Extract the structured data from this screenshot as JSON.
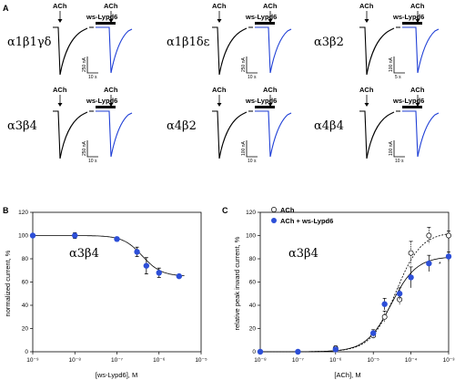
{
  "panels": {
    "a": "A",
    "b": "B",
    "c": "C"
  },
  "traces": {
    "ach_label": "ACh",
    "lypd6_label": "ws-Lypd6",
    "subunits": [
      "α1β1γδ",
      "α1β1δε",
      "α3β2",
      "α3β4",
      "α4β2",
      "α4β4"
    ],
    "scale_current": [
      "250 nA",
      "250 nA",
      "100 nA",
      "250 nA",
      "100 nA",
      "100 nA"
    ],
    "scale_time": [
      "10 s",
      "10 s",
      "5 s",
      "10 s",
      "10 s",
      "10 s"
    ]
  },
  "chart_data": [
    {
      "type": "scatter",
      "panel": "B",
      "annotation": "α3β4",
      "xlabel": "[ws-Lypd6], M",
      "ylabel": "normalized current, %",
      "xscale": "log",
      "xlim": [
        1e-09,
        1e-05
      ],
      "ylim": [
        0,
        120
      ],
      "x_ticks": [
        "10⁻⁹",
        "10⁻⁸",
        "10⁻⁷",
        "10⁻⁶",
        "10⁻⁵"
      ],
      "y_ticks": [
        "0",
        "20",
        "40",
        "60",
        "80",
        "100",
        "120"
      ],
      "series": [
        {
          "x": [
            1e-09,
            1e-08,
            1e-07,
            3e-07,
            5e-07,
            1e-06,
            3e-06
          ],
          "y": [
            100,
            100,
            97,
            86,
            74,
            68,
            65
          ],
          "yerr": [
            1.5,
            2.5,
            1.5,
            4,
            7,
            4,
            1.5
          ]
        }
      ],
      "fit": {
        "bottom": 65,
        "top": 100,
        "ic50": 4e-07,
        "hill": 1.9
      }
    },
    {
      "type": "scatter",
      "panel": "C",
      "annotation": "α3β4",
      "xlabel": "[ACh], M",
      "ylabel": "relative peak inward current, %",
      "xscale": "log",
      "xlim": [
        1e-08,
        0.001
      ],
      "ylim": [
        0,
        120
      ],
      "x_ticks": [
        "10⁻⁸",
        "10⁻⁷",
        "10⁻⁶",
        "10⁻⁵",
        "10⁻⁴",
        "10⁻³"
      ],
      "y_ticks": [
        "0",
        "20",
        "40",
        "60",
        "80",
        "100",
        "120"
      ],
      "legend_position": "top-right",
      "series": [
        {
          "name": "ACh",
          "style": "open",
          "x": [
            1e-08,
            1e-07,
            1e-06,
            1e-05,
            2e-05,
            5e-05,
            0.0001,
            0.0003,
            0.001
          ],
          "y": [
            0,
            0,
            3,
            14,
            30,
            45,
            85,
            100,
            100
          ],
          "yerr": [
            1,
            1,
            2,
            3,
            5,
            5,
            10,
            7,
            4
          ]
        },
        {
          "name": "ACh + ws-Lypd6",
          "style": "filled",
          "x": [
            1e-08,
            1e-07,
            1e-06,
            1e-05,
            2e-05,
            5e-05,
            0.0001,
            0.0003,
            0.001
          ],
          "y": [
            0,
            0,
            2,
            16,
            41,
            50,
            64,
            76,
            82
          ],
          "yerr": [
            1,
            1,
            2,
            3,
            5,
            5,
            9,
            7,
            4
          ]
        }
      ],
      "significance_marker": "*",
      "fits": [
        {
          "bottom": 0,
          "top": 103,
          "ec50": 4e-05,
          "hill": 1.3
        },
        {
          "bottom": 0,
          "top": 82,
          "ec50": 3e-05,
          "hill": 1.3
        }
      ]
    }
  ],
  "colors": {
    "control": "#000000",
    "lypd6": "#1f3fd6",
    "marker": "#2d4fd8"
  }
}
